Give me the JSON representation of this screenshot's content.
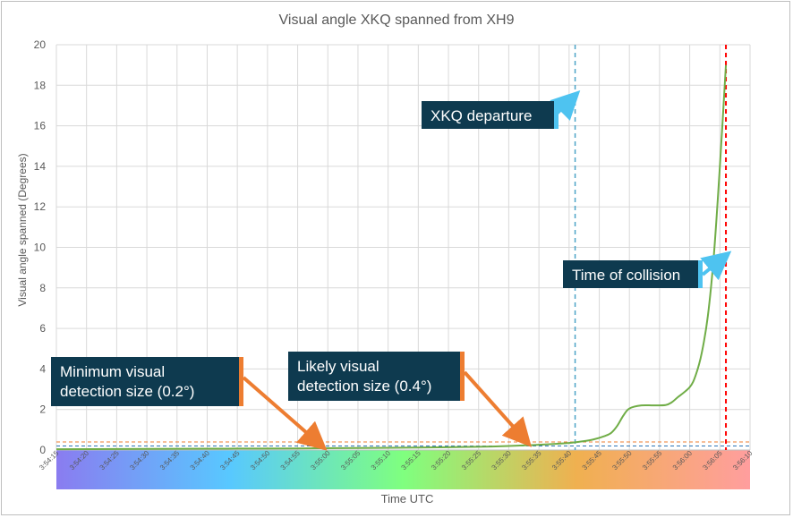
{
  "chart_data": {
    "type": "line",
    "title": "Visual angle XKQ spanned from XH9",
    "xlabel": "Time UTC",
    "ylabel": "Visual angle spanned (Degrees)",
    "ylim": [
      0,
      20
    ],
    "yticks": [
      0,
      2,
      4,
      6,
      8,
      10,
      12,
      14,
      16,
      18,
      20
    ],
    "xlim_seconds_after_3_54_15": [
      0,
      115
    ],
    "xtick_labels": [
      "3:54:15",
      "3:54:20",
      "3:54:25",
      "3:54:30",
      "3:54:35",
      "3:54:40",
      "3:54:45",
      "3:54:50",
      "3:54:55",
      "3:55:00",
      "3:55:05",
      "3:55:10",
      "3:55:15",
      "3:55:20",
      "3:55:25",
      "3:55:30",
      "3:55:35",
      "3:55:40",
      "3:55:45",
      "3:55:50",
      "3:55:55",
      "3:56:00",
      "3:56:05",
      "3:56:10"
    ],
    "grid": true,
    "series": [
      {
        "color": "#70ad47",
        "x": [
          "3:54:15",
          "3:54:25",
          "3:54:35",
          "3:54:45",
          "3:54:55",
          "3:55:05",
          "3:55:15",
          "3:55:25",
          "3:55:30",
          "3:55:35",
          "3:55:40",
          "3:55:42",
          "3:55:44",
          "3:55:46",
          "3:55:47",
          "3:55:48",
          "3:55:49",
          "3:55:50",
          "3:55:52",
          "3:55:54",
          "3:55:56",
          "3:55:57",
          "3:55:58",
          "3:56:00",
          "3:56:01",
          "3:56:02",
          "3:56:03",
          "3:56:04",
          "3:56:05",
          "3:56:06"
        ],
        "y": [
          0.04,
          0.05,
          0.06,
          0.07,
          0.08,
          0.1,
          0.12,
          0.16,
          0.2,
          0.26,
          0.35,
          0.42,
          0.52,
          0.7,
          0.85,
          1.2,
          1.7,
          2.05,
          2.2,
          2.2,
          2.22,
          2.35,
          2.6,
          3.1,
          3.7,
          4.8,
          6.6,
          9.6,
          14.0,
          19.0
        ]
      }
    ],
    "reference_lines": [
      {
        "type": "vertical",
        "x": "3:55:41",
        "color": "#4ba3c7",
        "style": "dashed"
      },
      {
        "type": "vertical",
        "x": "3:56:06",
        "color": "#ff0000",
        "style": "dashed"
      },
      {
        "type": "horizontal",
        "y": 0.2,
        "color": "#2e75b6",
        "style": "dashed"
      },
      {
        "type": "horizontal",
        "y": 0.4,
        "color": "#ed7d31",
        "style": "dashed"
      }
    ],
    "annotations": [
      {
        "id": "xkq",
        "text": "XKQ departure",
        "bar_color": "#4ec3f0",
        "target_time": "3:55:41",
        "target_value": 17.5
      },
      {
        "id": "collision",
        "text": "Time of collision",
        "bar_color": "#4ec3f0",
        "target_time": "3:56:06",
        "target_value": 9.6
      },
      {
        "id": "min",
        "text_lines": [
          "Minimum visual",
          "detection size (0.2°)"
        ],
        "bar_color": "#ed7d31",
        "target_time": "3:54:59",
        "target_value": 0.2
      },
      {
        "id": "likely",
        "text_lines": [
          "Likely visual",
          "detection size (0.4°)"
        ],
        "bar_color": "#ed7d31",
        "target_time": "3:55:33",
        "target_value": 0.4
      }
    ],
    "background_gradient": [
      "#8a7cf0",
      "#58c8ff",
      "#7fff7f",
      "#f0b050",
      "#ff9e9e"
    ]
  }
}
